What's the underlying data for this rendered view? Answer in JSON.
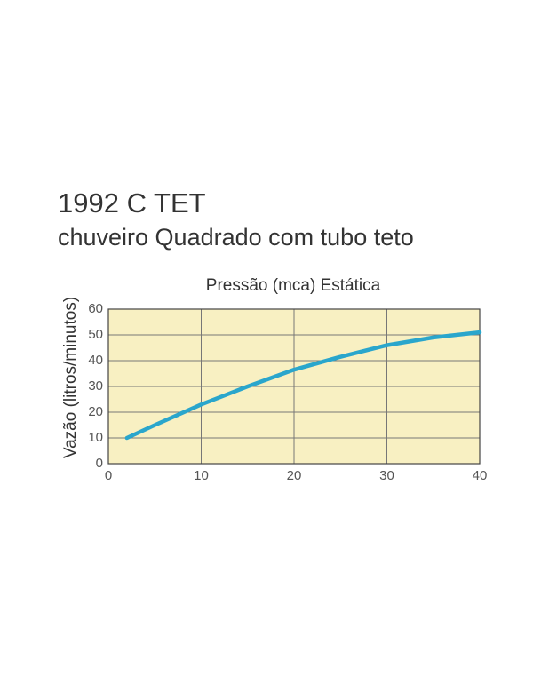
{
  "chart_data": {
    "type": "line",
    "title": "1992 C TET",
    "subtitle": "chuveiro Quadrado com tubo teto",
    "x_label": "Pressão (mca) Estática",
    "y_label": "Vazão (litros/minutos)",
    "x": [
      2,
      5,
      10,
      15,
      20,
      25,
      30,
      35,
      40
    ],
    "values": [
      10,
      15,
      23,
      30,
      36.5,
      41.5,
      46,
      49,
      51
    ],
    "color": "#2aa6cc",
    "xlim": [
      0,
      40
    ],
    "xticks": [
      0,
      10,
      20,
      30,
      40
    ],
    "ylim": [
      0,
      60
    ],
    "yticks": [
      0,
      10,
      20,
      30,
      40,
      50,
      60
    ],
    "grid": true
  }
}
